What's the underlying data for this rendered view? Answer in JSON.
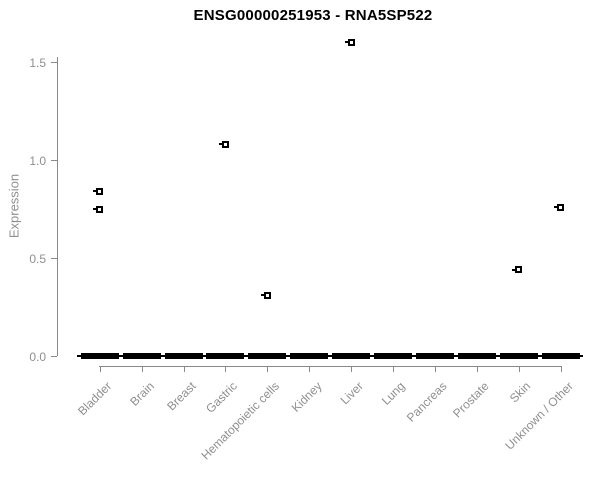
{
  "header": {
    "title": "ENSG00000251953 - RNA5SP522"
  },
  "chart_data": {
    "type": "boxplot",
    "title": "ENSG00000251953 - RNA5SP522",
    "xlabel": "",
    "ylabel": "Expression",
    "ylim": [
      0,
      1.65
    ],
    "grid": false,
    "legend": false,
    "yticks": [
      {
        "value": 0,
        "label": "0.0"
      },
      {
        "value": 0.5,
        "label": "0.5"
      },
      {
        "value": 1,
        "label": "1.0"
      },
      {
        "value": 1.5,
        "label": "1.5"
      }
    ],
    "categories": [
      "Bladder",
      "Brain",
      "Breast",
      "Gastric",
      "Hematopoietic cells",
      "Kidney",
      "Liver",
      "Lung",
      "Pancreas",
      "Prostate",
      "Skin",
      "Unknown / Other"
    ],
    "box_medians": [
      0,
      0,
      0,
      0,
      0,
      0,
      0,
      0,
      0,
      0,
      0,
      0
    ],
    "outliers": [
      {
        "category": "Bladder",
        "value": 0.84
      },
      {
        "category": "Bladder",
        "value": 0.75
      },
      {
        "category": "Gastric",
        "value": 1.08
      },
      {
        "category": "Hematopoietic cells",
        "value": 0.31
      },
      {
        "category": "Liver",
        "value": 1.6
      },
      {
        "category": "Skin",
        "value": 0.44
      },
      {
        "category": "Unknown / Other",
        "value": 0.76
      }
    ]
  },
  "colors": {
    "background": "#ffffff",
    "axis_line": "#8a8a8a",
    "axis_text": "#8f8f8f",
    "title_text": "#000000",
    "data_mark": "#000000"
  }
}
